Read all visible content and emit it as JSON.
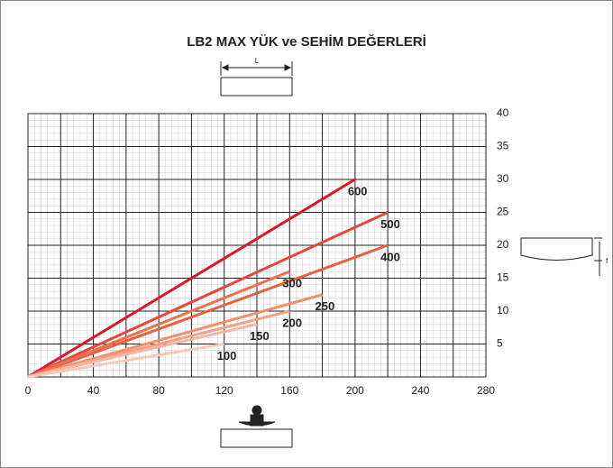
{
  "chart_data": {
    "type": "line",
    "title": "LB2 MAX YÜK ve SEHİM DEĞERLERİ",
    "annotations": [
      "L",
      "f"
    ],
    "xlim": [
      0,
      280
    ],
    "xticks": [
      0,
      40,
      80,
      120,
      160,
      200,
      240,
      280
    ],
    "ylim": [
      0,
      40
    ],
    "yticks": [
      5,
      10,
      15,
      20,
      25,
      30,
      35,
      40
    ],
    "grid": true,
    "series": [
      {
        "name": "600",
        "color": "#d7192a",
        "x": [
          0,
          200
        ],
        "values": [
          0,
          30
        ]
      },
      {
        "name": "500",
        "color": "#e5473a",
        "x": [
          0,
          220
        ],
        "values": [
          0,
          25
        ]
      },
      {
        "name": "400",
        "color": "#e8603f",
        "x": [
          0,
          220
        ],
        "values": [
          0,
          20
        ]
      },
      {
        "name": "300",
        "color": "#ec7151",
        "x": [
          0,
          160
        ],
        "values": [
          0,
          16
        ]
      },
      {
        "name": "250",
        "color": "#f18f6f",
        "x": [
          0,
          180
        ],
        "values": [
          0,
          12.5
        ]
      },
      {
        "name": "200",
        "color": "#f3a288",
        "x": [
          0,
          160
        ],
        "values": [
          0,
          10
        ]
      },
      {
        "name": "150",
        "color": "#f6b6a0",
        "x": [
          0,
          140
        ],
        "values": [
          0,
          8
        ]
      },
      {
        "name": "100",
        "color": "#f8c9b8",
        "x": [
          0,
          120
        ],
        "values": [
          0,
          5
        ]
      }
    ]
  }
}
